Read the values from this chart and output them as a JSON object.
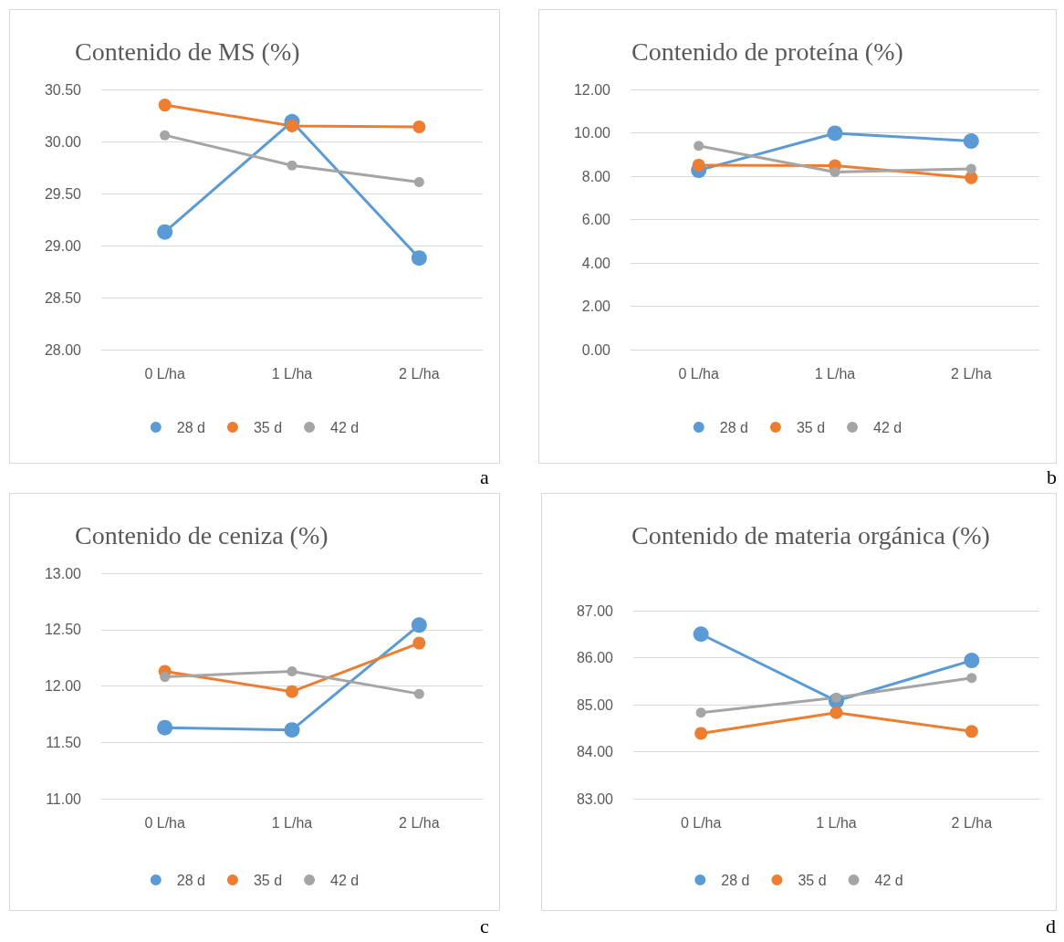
{
  "chart_data": [
    {
      "type": "line",
      "title": "Contenido de MS (%)",
      "categories": [
        "0 L/ha",
        "1 L/ha",
        "2 L/ha"
      ],
      "series": [
        {
          "name": "28 d",
          "color": "#5b9bd5",
          "values": [
            29.13,
            30.19,
            28.88
          ]
        },
        {
          "name": "35 d",
          "color": "#ed7d31",
          "values": [
            30.35,
            30.15,
            30.14
          ]
        },
        {
          "name": "42 d",
          "color": "#a5a5a5",
          "values": [
            30.06,
            29.77,
            29.61
          ]
        }
      ],
      "ylim": [
        28,
        30.5
      ],
      "yticks": [
        {
          "value": 28,
          "label": "28.00"
        },
        {
          "value": 28.5,
          "label": "28.50"
        },
        {
          "value": 29,
          "label": "29.00"
        },
        {
          "value": 29.5,
          "label": "29.50"
        },
        {
          "value": 30,
          "label": "30.00"
        },
        {
          "value": 30.5,
          "label": "30.50"
        }
      ],
      "grid": "y",
      "legend": "bottom",
      "marker": "circle",
      "line_style": "solid",
      "annotations": [
        "a"
      ]
    },
    {
      "type": "line",
      "title": "Contenido de proteína (%)",
      "categories": [
        "0 L/ha",
        "1 L/ha",
        "2 L/ha"
      ],
      "series": [
        {
          "name": "28 d",
          "color": "#5b9bd5",
          "values": [
            8.27,
            9.98,
            9.62
          ]
        },
        {
          "name": "35 d",
          "color": "#ed7d31",
          "values": [
            8.51,
            8.48,
            7.93
          ]
        },
        {
          "name": "42 d",
          "color": "#a5a5a5",
          "values": [
            9.4,
            8.19,
            8.34
          ]
        }
      ],
      "ylim": [
        0,
        12
      ],
      "yticks": [
        {
          "value": 0,
          "label": "0.00"
        },
        {
          "value": 2,
          "label": "2.00"
        },
        {
          "value": 4,
          "label": "4.00"
        },
        {
          "value": 6,
          "label": "6.00"
        },
        {
          "value": 8,
          "label": "8.00"
        },
        {
          "value": 10,
          "label": "10.00"
        },
        {
          "value": 12,
          "label": "12.00"
        }
      ],
      "grid": "y",
      "legend": "bottom",
      "marker": "circle",
      "line_style": "solid",
      "annotations": [
        "b"
      ]
    },
    {
      "type": "line",
      "title": "Contenido de ceniza (%)",
      "categories": [
        "0 L/ha",
        "1 L/ha",
        "2 L/ha"
      ],
      "series": [
        {
          "name": "28 d",
          "color": "#5b9bd5",
          "values": [
            11.63,
            11.61,
            12.54
          ]
        },
        {
          "name": "35 d",
          "color": "#ed7d31",
          "values": [
            12.13,
            11.95,
            12.38
          ]
        },
        {
          "name": "42 d",
          "color": "#a5a5a5",
          "values": [
            12.08,
            12.13,
            11.93
          ]
        }
      ],
      "ylim": [
        11,
        13
      ],
      "yticks": [
        {
          "value": 11,
          "label": "11.00"
        },
        {
          "value": 11.5,
          "label": "11.50"
        },
        {
          "value": 12,
          "label": "12.00"
        },
        {
          "value": 12.5,
          "label": "12.50"
        },
        {
          "value": 13,
          "label": "13.00"
        }
      ],
      "grid": "y",
      "legend": "bottom",
      "marker": "circle",
      "line_style": "solid",
      "annotations": [
        "c"
      ]
    },
    {
      "type": "line",
      "title": "Contenido de materia orgánica (%)",
      "categories": [
        "0 L/ha",
        "1 L/ha",
        "2 L/ha"
      ],
      "series": [
        {
          "name": "28 d",
          "color": "#5b9bd5",
          "values": [
            86.5,
            85.08,
            85.94
          ]
        },
        {
          "name": "35 d",
          "color": "#ed7d31",
          "values": [
            84.39,
            84.83,
            84.43
          ]
        },
        {
          "name": "42 d",
          "color": "#a5a5a5",
          "values": [
            84.83,
            85.15,
            85.57
          ]
        }
      ],
      "ylim": [
        83,
        87
      ],
      "yticks": [
        {
          "value": 83,
          "label": "83.00"
        },
        {
          "value": 84,
          "label": "84.00"
        },
        {
          "value": 85,
          "label": "85.00"
        },
        {
          "value": 86,
          "label": "86.00"
        },
        {
          "value": 87,
          "label": "87.00"
        }
      ],
      "grid": "y",
      "legend": "bottom",
      "marker": "circle",
      "line_style": "solid",
      "annotations": [
        "d"
      ]
    }
  ]
}
